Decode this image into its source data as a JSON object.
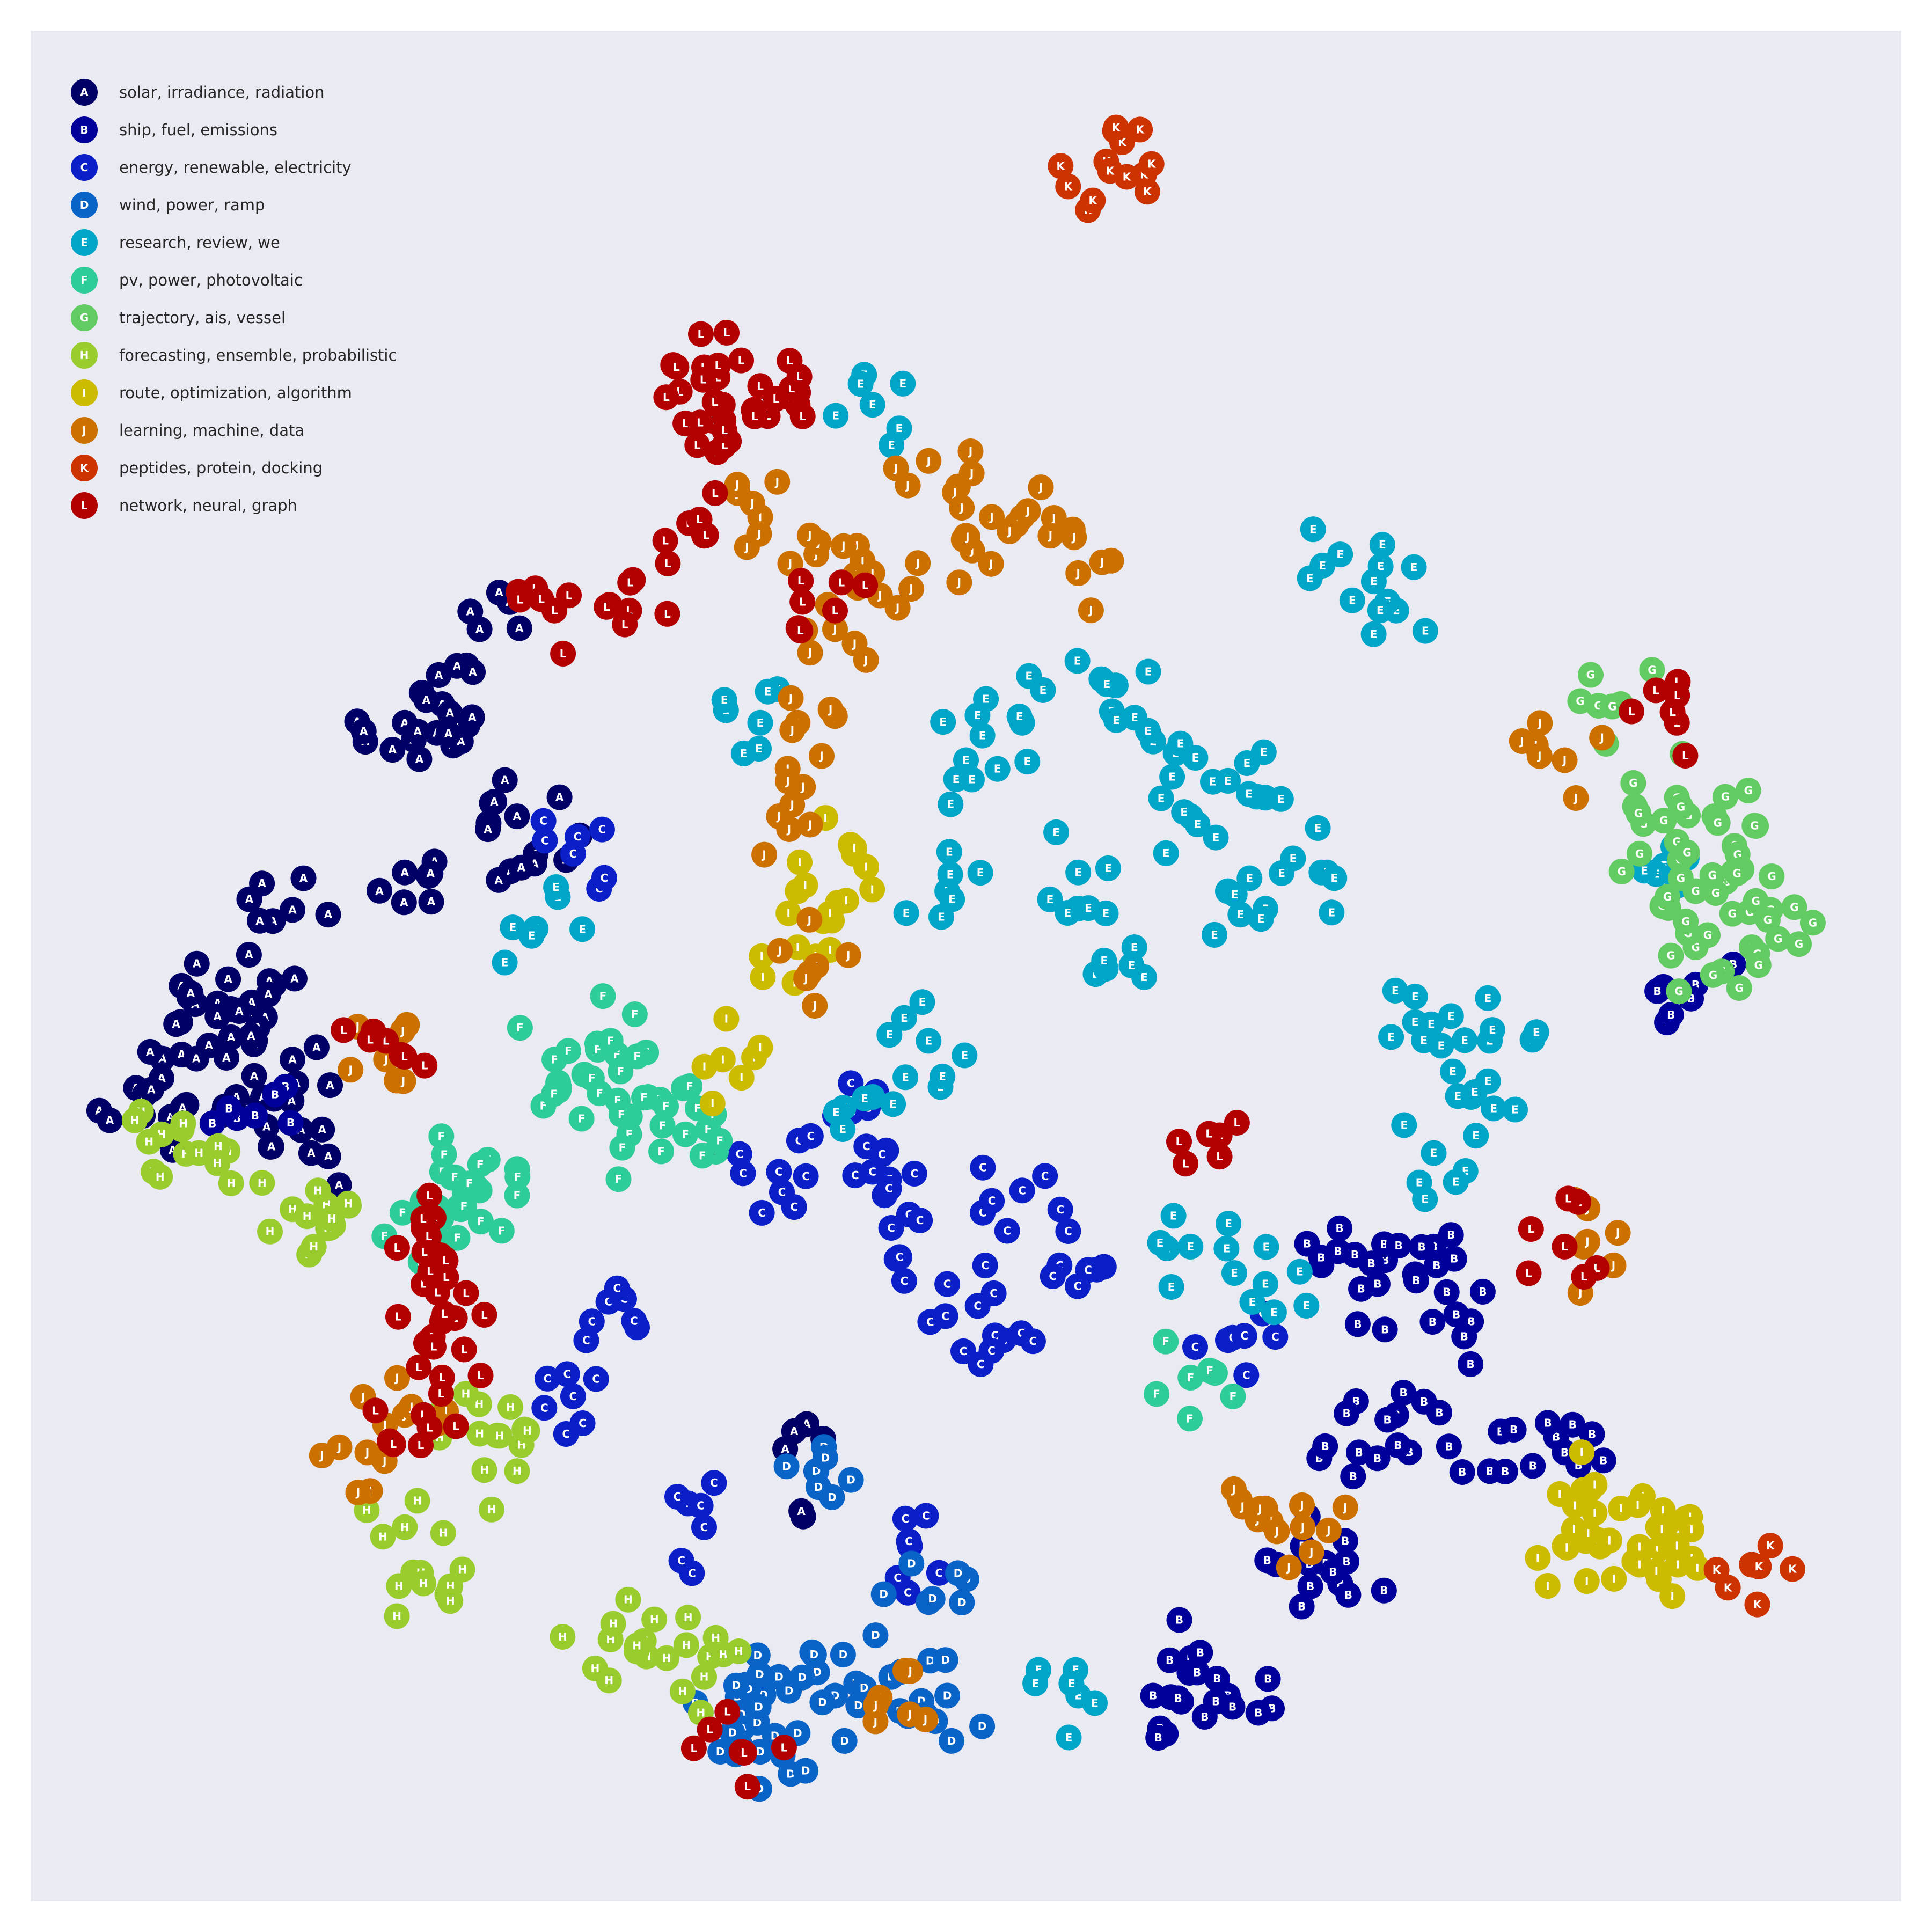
{
  "chart_data": {
    "type": "scatter",
    "title": "",
    "xlabel": "",
    "ylabel": "",
    "grid": false,
    "axes_visible": false,
    "legend_placement": "top-left",
    "marker_style": "filled circle with white letter code",
    "series": [
      {
        "code": "A",
        "name": "solar, irradiance, radiation",
        "color": "#000066"
      },
      {
        "code": "B",
        "name": "ship, fuel, emissions",
        "color": "#00009a"
      },
      {
        "code": "C",
        "name": "energy, renewable, electricity",
        "color": "#0a1fc8"
      },
      {
        "code": "D",
        "name": "wind, power, ramp",
        "color": "#0a63c6"
      },
      {
        "code": "E",
        "name": "research, review, we",
        "color": "#00a6c8"
      },
      {
        "code": "F",
        "name": "pv, power, photovoltaic",
        "color": "#2dcc98"
      },
      {
        "code": "G",
        "name": "trajectory, ais, vessel",
        "color": "#62cc62"
      },
      {
        "code": "H",
        "name": "forecasting, ensemble, probabilistic",
        "color": "#99cc2d"
      },
      {
        "code": "I",
        "name": "route, optimization, algorithm",
        "color": "#ccbb00"
      },
      {
        "code": "J",
        "name": "learning, machine, data",
        "color": "#cc7000"
      },
      {
        "code": "K",
        "name": "peptides, protein, docking",
        "color": "#cc3300"
      },
      {
        "code": "L",
        "name": "network, neural, graph",
        "color": "#b30000"
      }
    ],
    "clusters": [
      {
        "code": "A",
        "points": [
          {
            "x": 0.24,
            "y": 0.32
          },
          {
            "x": 0.22,
            "y": 0.36
          },
          {
            "x": 0.2,
            "y": 0.37
          },
          {
            "x": 0.23,
            "y": 0.38
          },
          {
            "x": 0.2,
            "y": 0.45
          },
          {
            "x": 0.14,
            "y": 0.47
          },
          {
            "x": 0.13,
            "y": 0.51
          },
          {
            "x": 0.1,
            "y": 0.52
          },
          {
            "x": 0.08,
            "y": 0.53
          },
          {
            "x": 0.12,
            "y": 0.54
          },
          {
            "x": 0.07,
            "y": 0.56
          },
          {
            "x": 0.06,
            "y": 0.58
          },
          {
            "x": 0.11,
            "y": 0.57
          },
          {
            "x": 0.14,
            "y": 0.55
          },
          {
            "x": 0.15,
            "y": 0.6
          },
          {
            "x": 0.26,
            "y": 0.42
          },
          {
            "x": 0.27,
            "y": 0.44
          },
          {
            "x": 0.42,
            "y": 0.77
          }
        ]
      },
      {
        "code": "B",
        "points": [
          {
            "x": 0.69,
            "y": 0.66
          },
          {
            "x": 0.72,
            "y": 0.67
          },
          {
            "x": 0.75,
            "y": 0.65
          },
          {
            "x": 0.77,
            "y": 0.69
          },
          {
            "x": 0.73,
            "y": 0.74
          },
          {
            "x": 0.71,
            "y": 0.76
          },
          {
            "x": 0.78,
            "y": 0.77
          },
          {
            "x": 0.82,
            "y": 0.76
          },
          {
            "x": 0.68,
            "y": 0.81
          },
          {
            "x": 0.7,
            "y": 0.83
          },
          {
            "x": 0.62,
            "y": 0.87
          },
          {
            "x": 0.6,
            "y": 0.89
          },
          {
            "x": 0.64,
            "y": 0.89
          },
          {
            "x": 0.89,
            "y": 0.51
          },
          {
            "x": 0.12,
            "y": 0.58
          }
        ]
      },
      {
        "code": "C",
        "points": [
          {
            "x": 0.43,
            "y": 0.58
          },
          {
            "x": 0.45,
            "y": 0.61
          },
          {
            "x": 0.46,
            "y": 0.64
          },
          {
            "x": 0.49,
            "y": 0.67
          },
          {
            "x": 0.52,
            "y": 0.7
          },
          {
            "x": 0.55,
            "y": 0.66
          },
          {
            "x": 0.53,
            "y": 0.62
          },
          {
            "x": 0.4,
            "y": 0.61
          },
          {
            "x": 0.29,
            "y": 0.44
          },
          {
            "x": 0.3,
            "y": 0.69
          },
          {
            "x": 0.29,
            "y": 0.73
          },
          {
            "x": 0.47,
            "y": 0.81
          },
          {
            "x": 0.64,
            "y": 0.7
          },
          {
            "x": 0.36,
            "y": 0.8
          }
        ]
      },
      {
        "code": "D",
        "points": [
          {
            "x": 0.4,
            "y": 0.88
          },
          {
            "x": 0.43,
            "y": 0.89
          },
          {
            "x": 0.46,
            "y": 0.88
          },
          {
            "x": 0.49,
            "y": 0.89
          },
          {
            "x": 0.38,
            "y": 0.9
          },
          {
            "x": 0.41,
            "y": 0.91
          },
          {
            "x": 0.48,
            "y": 0.84
          },
          {
            "x": 0.42,
            "y": 0.77
          },
          {
            "x": 0.39,
            "y": 0.92
          }
        ]
      },
      {
        "code": "E",
        "points": [
          {
            "x": 0.58,
            "y": 0.35
          },
          {
            "x": 0.6,
            "y": 0.38
          },
          {
            "x": 0.62,
            "y": 0.42
          },
          {
            "x": 0.66,
            "y": 0.41
          },
          {
            "x": 0.69,
            "y": 0.45
          },
          {
            "x": 0.64,
            "y": 0.46
          },
          {
            "x": 0.59,
            "y": 0.49
          },
          {
            "x": 0.56,
            "y": 0.45
          },
          {
            "x": 0.5,
            "y": 0.39
          },
          {
            "x": 0.53,
            "y": 0.37
          },
          {
            "x": 0.49,
            "y": 0.46
          },
          {
            "x": 0.74,
            "y": 0.53
          },
          {
            "x": 0.77,
            "y": 0.57
          },
          {
            "x": 0.78,
            "y": 0.54
          },
          {
            "x": 0.75,
            "y": 0.6
          },
          {
            "x": 0.7,
            "y": 0.28
          },
          {
            "x": 0.73,
            "y": 0.31
          },
          {
            "x": 0.48,
            "y": 0.54
          },
          {
            "x": 0.45,
            "y": 0.57
          },
          {
            "x": 0.62,
            "y": 0.65
          },
          {
            "x": 0.66,
            "y": 0.67
          },
          {
            "x": 0.39,
            "y": 0.37
          },
          {
            "x": 0.27,
            "y": 0.48
          },
          {
            "x": 0.45,
            "y": 0.2
          },
          {
            "x": 0.87,
            "y": 0.45
          },
          {
            "x": 0.56,
            "y": 0.89
          }
        ]
      },
      {
        "code": "F",
        "points": [
          {
            "x": 0.28,
            "y": 0.55
          },
          {
            "x": 0.3,
            "y": 0.56
          },
          {
            "x": 0.31,
            "y": 0.54
          },
          {
            "x": 0.33,
            "y": 0.57
          },
          {
            "x": 0.32,
            "y": 0.59
          },
          {
            "x": 0.35,
            "y": 0.59
          },
          {
            "x": 0.22,
            "y": 0.61
          },
          {
            "x": 0.24,
            "y": 0.62
          },
          {
            "x": 0.21,
            "y": 0.64
          },
          {
            "x": 0.23,
            "y": 0.63
          },
          {
            "x": 0.62,
            "y": 0.72
          }
        ]
      },
      {
        "code": "G",
        "points": [
          {
            "x": 0.85,
            "y": 0.36
          },
          {
            "x": 0.88,
            "y": 0.41
          },
          {
            "x": 0.9,
            "y": 0.42
          },
          {
            "x": 0.91,
            "y": 0.45
          },
          {
            "x": 0.89,
            "y": 0.46
          },
          {
            "x": 0.93,
            "y": 0.47
          },
          {
            "x": 0.92,
            "y": 0.49
          },
          {
            "x": 0.86,
            "y": 0.44
          },
          {
            "x": 0.89,
            "y": 0.49
          }
        ]
      },
      {
        "code": "H",
        "points": [
          {
            "x": 0.07,
            "y": 0.59
          },
          {
            "x": 0.09,
            "y": 0.6
          },
          {
            "x": 0.14,
            "y": 0.63
          },
          {
            "x": 0.16,
            "y": 0.64
          },
          {
            "x": 0.24,
            "y": 0.75
          },
          {
            "x": 0.26,
            "y": 0.77
          },
          {
            "x": 0.2,
            "y": 0.8
          },
          {
            "x": 0.21,
            "y": 0.83
          },
          {
            "x": 0.31,
            "y": 0.86
          },
          {
            "x": 0.34,
            "y": 0.87
          },
          {
            "x": 0.36,
            "y": 0.88
          }
        ]
      },
      {
        "code": "I",
        "points": [
          {
            "x": 0.83,
            "y": 0.78
          },
          {
            "x": 0.85,
            "y": 0.79
          },
          {
            "x": 0.87,
            "y": 0.8
          },
          {
            "x": 0.88,
            "y": 0.81
          },
          {
            "x": 0.82,
            "y": 0.81
          },
          {
            "x": 0.86,
            "y": 0.82
          },
          {
            "x": 0.41,
            "y": 0.46
          },
          {
            "x": 0.41,
            "y": 0.49
          },
          {
            "x": 0.44,
            "y": 0.44
          },
          {
            "x": 0.37,
            "y": 0.55
          }
        ]
      },
      {
        "code": "J",
        "points": [
          {
            "x": 0.39,
            "y": 0.26
          },
          {
            "x": 0.42,
            "y": 0.28
          },
          {
            "x": 0.45,
            "y": 0.29
          },
          {
            "x": 0.48,
            "y": 0.23
          },
          {
            "x": 0.5,
            "y": 0.27
          },
          {
            "x": 0.53,
            "y": 0.26
          },
          {
            "x": 0.56,
            "y": 0.29
          },
          {
            "x": 0.43,
            "y": 0.32
          },
          {
            "x": 0.41,
            "y": 0.37
          },
          {
            "x": 0.4,
            "y": 0.42
          },
          {
            "x": 0.42,
            "y": 0.5
          },
          {
            "x": 0.2,
            "y": 0.74
          },
          {
            "x": 0.18,
            "y": 0.76
          },
          {
            "x": 0.66,
            "y": 0.79
          },
          {
            "x": 0.68,
            "y": 0.8
          },
          {
            "x": 0.83,
            "y": 0.65
          },
          {
            "x": 0.82,
            "y": 0.39
          },
          {
            "x": 0.47,
            "y": 0.9
          },
          {
            "x": 0.19,
            "y": 0.55
          }
        ]
      },
      {
        "code": "K",
        "points": [
          {
            "x": 0.575,
            "y": 0.07
          },
          {
            "x": 0.577,
            "y": 0.075
          },
          {
            "x": 0.92,
            "y": 0.82
          }
        ]
      },
      {
        "code": "L",
        "points": [
          {
            "x": 0.36,
            "y": 0.18
          },
          {
            "x": 0.37,
            "y": 0.2
          },
          {
            "x": 0.39,
            "y": 0.19
          },
          {
            "x": 0.41,
            "y": 0.2
          },
          {
            "x": 0.35,
            "y": 0.21
          },
          {
            "x": 0.36,
            "y": 0.27
          },
          {
            "x": 0.43,
            "y": 0.31
          },
          {
            "x": 0.28,
            "y": 0.31
          },
          {
            "x": 0.32,
            "y": 0.31
          },
          {
            "x": 0.19,
            "y": 0.54
          },
          {
            "x": 0.21,
            "y": 0.64
          },
          {
            "x": 0.21,
            "y": 0.67
          },
          {
            "x": 0.22,
            "y": 0.69
          },
          {
            "x": 0.22,
            "y": 0.72
          },
          {
            "x": 0.21,
            "y": 0.74
          },
          {
            "x": 0.63,
            "y": 0.59
          },
          {
            "x": 0.82,
            "y": 0.65
          },
          {
            "x": 0.88,
            "y": 0.37
          },
          {
            "x": 0.38,
            "y": 0.92
          }
        ]
      }
    ]
  }
}
